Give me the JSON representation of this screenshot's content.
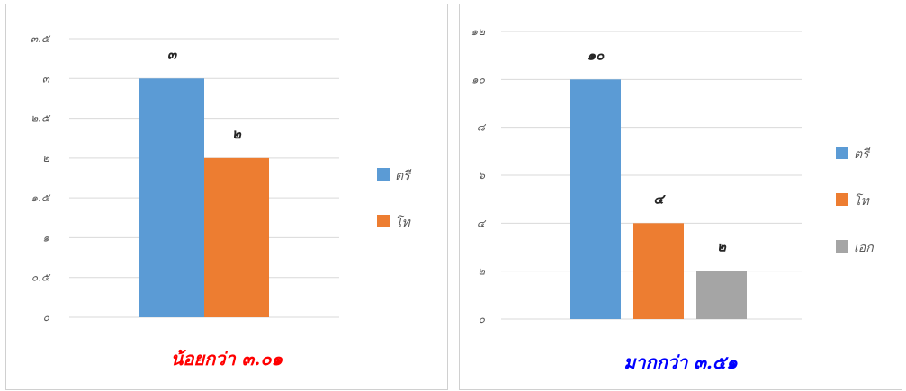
{
  "chart_data": [
    {
      "type": "bar",
      "title": "น้อยกว่า ๓.๐๑",
      "title_color": "#ff0000",
      "categories": [
        ""
      ],
      "series": [
        {
          "name": "ตรี",
          "values": [
            3
          ],
          "color": "#5b9bd5"
        },
        {
          "name": "โท",
          "values": [
            2
          ],
          "color": "#ed7d31"
        }
      ],
      "data_labels": [
        "๓",
        "๒"
      ],
      "ylim": [
        0,
        3.5
      ],
      "yticks": [
        0,
        0.5,
        1,
        1.5,
        2,
        2.5,
        3,
        3.5
      ],
      "ytick_labels": [
        "๐",
        "๐.๕",
        "๑",
        "๑.๕",
        "๒",
        "๒.๕",
        "๓",
        "๓.๕"
      ],
      "grid": true,
      "legend_position": "right"
    },
    {
      "type": "bar",
      "title": "มากกว่า ๓.๕๑",
      "title_color": "#0000ff",
      "categories": [
        ""
      ],
      "series": [
        {
          "name": "ตรี",
          "values": [
            10
          ],
          "color": "#5b9bd5"
        },
        {
          "name": "โท",
          "values": [
            4
          ],
          "color": "#ed7d31"
        },
        {
          "name": "เอก",
          "values": [
            2
          ],
          "color": "#a5a5a5"
        }
      ],
      "data_labels": [
        "๑๐",
        "๔",
        "๒"
      ],
      "ylim": [
        0,
        12
      ],
      "yticks": [
        0,
        2,
        4,
        6,
        8,
        10,
        12
      ],
      "ytick_labels": [
        "๐",
        "๒",
        "๔",
        "๖",
        "๘",
        "๑๐",
        "๑๒"
      ],
      "grid": true,
      "legend_position": "right"
    }
  ]
}
